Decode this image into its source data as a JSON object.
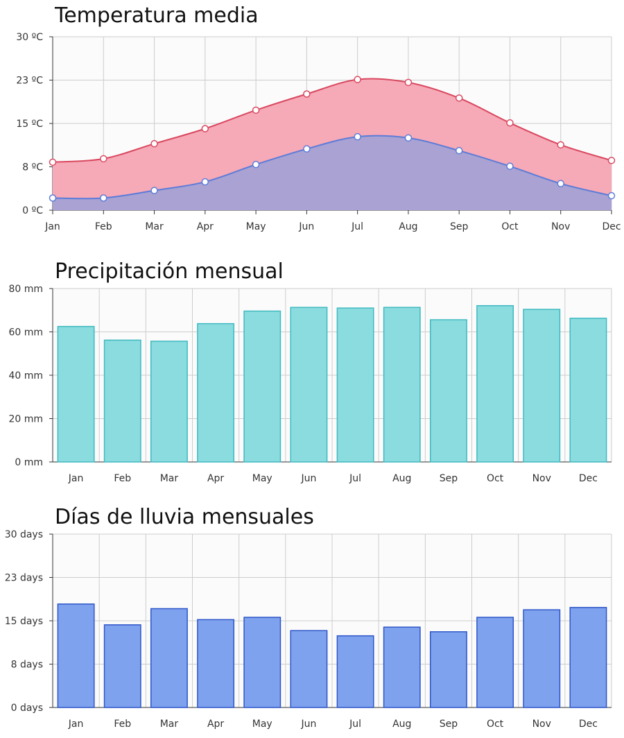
{
  "colors": {
    "temp_high_fill": "#f6a9b6",
    "temp_high_line": "#d9475f",
    "temp_low_fill": "#a9a2d2",
    "temp_low_line": "#5b7bd9",
    "precip_bar": "#8adcdf",
    "precip_bar_border": "#3fb9c0",
    "rain_days_bar": "#7ea2ee",
    "rain_days_bar_border": "#2d55c8",
    "grid": "#cccccc",
    "plot_background": "#fbfbfb"
  },
  "charts": {
    "temperature": {
      "title": "Temperatura media",
      "y_tick_labels": [
        "0 ºC",
        "8 ºC",
        "15 ºC",
        "23 ºC",
        "30 ºC"
      ],
      "x_tick_labels": [
        "Jan",
        "Feb",
        "Mar",
        "Apr",
        "May",
        "Jun",
        "Jul",
        "Aug",
        "Sep",
        "Oct",
        "Nov",
        "Dec"
      ]
    },
    "precipitation": {
      "title": "Precipitación mensual",
      "y_tick_labels": [
        "0 mm",
        "20 mm",
        "40 mm",
        "60 mm",
        "80 mm"
      ],
      "x_tick_labels": [
        "Jan",
        "Feb",
        "Mar",
        "Apr",
        "May",
        "Jun",
        "Jul",
        "Aug",
        "Sep",
        "Oct",
        "Nov",
        "Dec"
      ]
    },
    "rain_days": {
      "title": "Días de lluvia mensuales",
      "y_tick_labels": [
        "0 days",
        "8 days",
        "15 days",
        "23 days",
        "30 days"
      ],
      "x_tick_labels": [
        "Jan",
        "Feb",
        "Mar",
        "Apr",
        "May",
        "Jun",
        "Jul",
        "Aug",
        "Sep",
        "Oct",
        "Nov",
        "Dec"
      ]
    }
  },
  "chart_data": [
    {
      "type": "area",
      "title": "Temperatura media",
      "x": [
        "Jan",
        "Feb",
        "Mar",
        "Apr",
        "May",
        "Jun",
        "Jul",
        "Aug",
        "Sep",
        "Oct",
        "Nov",
        "Dec"
      ],
      "series": [
        {
          "values": [
            8.3,
            8.9,
            11.5,
            14.1,
            17.3,
            20.1,
            22.6,
            22.1,
            19.4,
            15.1,
            11.3,
            8.6
          ]
        },
        {
          "values": [
            2.1,
            2.1,
            3.4,
            4.9,
            7.9,
            10.6,
            12.7,
            12.5,
            10.3,
            7.6,
            4.6,
            2.5
          ]
        }
      ],
      "ylim": [
        0,
        30
      ],
      "grid": true
    },
    {
      "type": "bar",
      "title": "Precipitación mensual",
      "categories": [
        "Jan",
        "Feb",
        "Mar",
        "Apr",
        "May",
        "Jun",
        "Jul",
        "Aug",
        "Sep",
        "Oct",
        "Nov",
        "Dec"
      ],
      "values": [
        62.5,
        56.2,
        55.7,
        63.8,
        69.6,
        71.3,
        71.0,
        71.3,
        65.6,
        72.1,
        70.4,
        66.3
      ],
      "ylim": [
        0,
        80
      ],
      "grid": true
    },
    {
      "type": "bar",
      "title": "Días de lluvia mensuales",
      "categories": [
        "Jan",
        "Feb",
        "Mar",
        "Apr",
        "May",
        "Jun",
        "Jul",
        "Aug",
        "Sep",
        "Oct",
        "Nov",
        "Dec"
      ],
      "values": [
        17.9,
        14.3,
        17.1,
        15.2,
        15.6,
        13.3,
        12.4,
        13.9,
        13.1,
        15.6,
        16.9,
        17.3
      ],
      "ylim": [
        0,
        30
      ],
      "grid": true
    }
  ]
}
